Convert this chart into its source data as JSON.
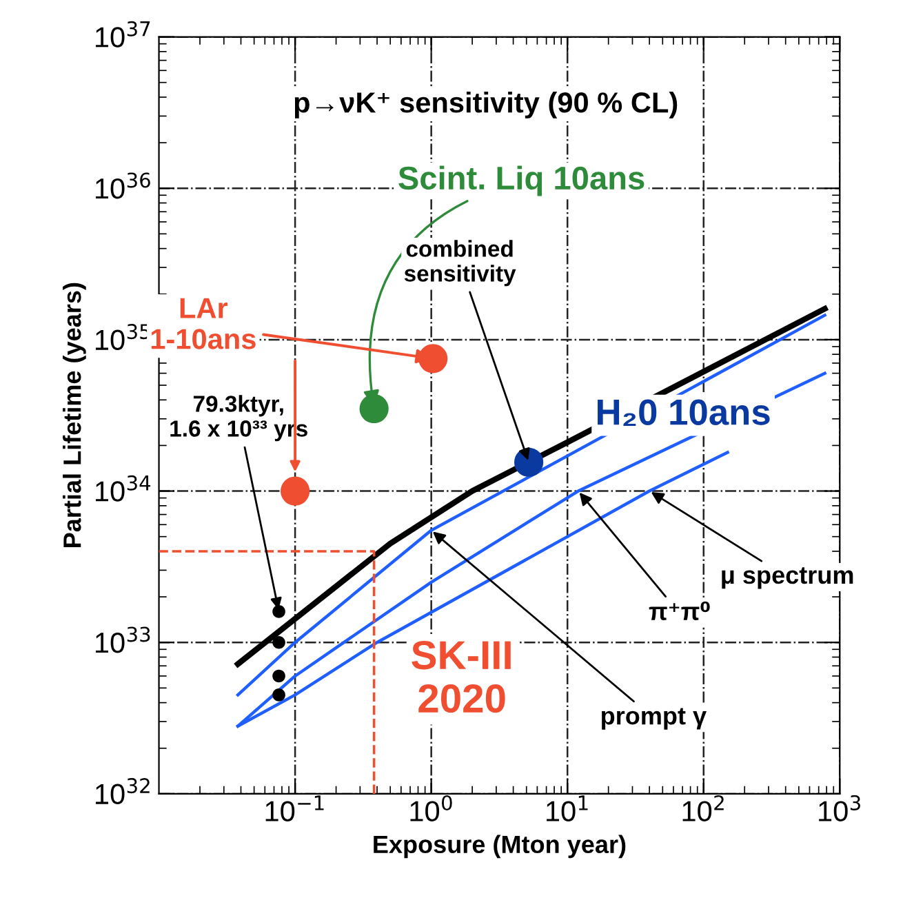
{
  "chart_data": {
    "type": "line",
    "xlabel": "Exposure (Mton year)",
    "ylabel": "Partial Lifetime (years)",
    "log": "xy",
    "grid": true,
    "xlim": [
      0.01,
      1000
    ],
    "ylim": [
      1e+32,
      1e+37
    ],
    "xticks": [
      {
        "value": 0.1,
        "label": "10$^{−1}$"
      },
      {
        "value": 1,
        "label": "10$^{0}$"
      },
      {
        "value": 10,
        "label": "10$^{1}$"
      },
      {
        "value": 100,
        "label": "10$^{2}$"
      },
      {
        "value": 1000,
        "label": "10$^{3}$"
      }
    ],
    "yticks": [
      {
        "value": 1e+32,
        "label": "10$^{32}$"
      },
      {
        "value": 1e+33,
        "label": "10$^{33}$"
      },
      {
        "value": 1e+34,
        "label": "10$^{34}$"
      },
      {
        "value": 1e+35,
        "label": "10$^{35}$"
      },
      {
        "value": 1e+36,
        "label": "10$^{36}$"
      },
      {
        "value": 1e+37,
        "label": "10$^{37}$"
      }
    ],
    "series": [
      {
        "color": "#000000",
        "x": [
          0.038,
          0.5,
          2,
          10,
          776
        ],
        "values": [
          7.2e+32,
          4.5e+33,
          1e+34,
          2.1e+34,
          1.6e+35
        ]
      },
      {
        "color": "#1f5fff",
        "x": [
          0.038,
          0.1,
          1,
          776
        ],
        "values": [
          4.5e+32,
          1e+33,
          5.5e+33,
          1.45e+35
        ]
      },
      {
        "color": "#1f5fff",
        "x": [
          0.038,
          0.1,
          1,
          12,
          776
        ],
        "values": [
          2.8e+32,
          6e+32,
          2.5e+33,
          1e+34,
          6e+34
        ]
      },
      {
        "color": "#1f5fff",
        "x": [
          0.038,
          0.1,
          0.4,
          40,
          150
        ],
        "values": [
          2.8e+32,
          4.5e+32,
          1e+33,
          1e+34,
          1.8e+34
        ]
      },
      {
        "color": "#f04e30",
        "line_style": "dashed",
        "x": [
          0.01,
          0.38,
          0.38
        ],
        "values": [
          4e+33,
          4e+33,
          1e+32
        ]
      },
      {
        "type": "scatter",
        "color": "#000000",
        "x": [
          0.076,
          0.076,
          0.076,
          0.076
        ],
        "values": [
          1.6e+33,
          1e+33,
          6e+32,
          4.5e+32
        ]
      },
      {
        "type": "scatter",
        "color": "#f04e30",
        "x": [
          0.1,
          1.03
        ],
        "values": [
          1e+34,
          7.5e+34
        ]
      },
      {
        "type": "scatter",
        "color": "#2e8b3a",
        "x": [
          0.38
        ],
        "values": [
          3.5e+34
        ]
      },
      {
        "type": "scatter",
        "color": "#0a3aa0",
        "x": [
          5.2
        ],
        "values": [
          1.55e+34
        ]
      }
    ],
    "annotations": [
      "p→νK⁺ sensitivity (90 % CL)",
      {
        "text": "Scint. Liq 10ans",
        "x": 0.38,
        "y": 3.5e+34
      },
      {
        "text": "LAr\n1-10ans",
        "x": 1.03,
        "y": 7.5e+34
      },
      {
        "text": "combined\nsensitivity",
        "x": 5.2,
        "y": 1.55e+34
      },
      "H₂0 10ans",
      {
        "text": "79.3ktyr,\n1.6 x 10³³ yrs",
        "x": 0.076,
        "y": 1.6e+33
      },
      {
        "text": "μ spectrum",
        "x": 40,
        "y": 1e+34
      },
      {
        "text": "π⁺π⁰",
        "x": 12,
        "y": 1e+34
      },
      {
        "text": "prompt γ",
        "x": 1,
        "y": 5.5e+33
      },
      "SK-III\n2020"
    ]
  }
}
